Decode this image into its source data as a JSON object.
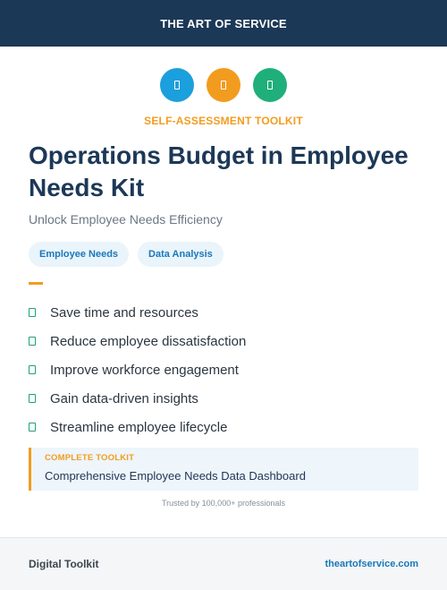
{
  "header": {
    "brand": "THE ART OF SERVICE"
  },
  "icons": [
    {
      "name": "blue-badge-icon",
      "color": "#1c9fdd"
    },
    {
      "name": "orange-badge-icon",
      "color": "#f29c1f"
    },
    {
      "name": "green-badge-icon",
      "color": "#1faf7a"
    }
  ],
  "hero": {
    "kicker": "SELF-ASSESSMENT TOOLKIT",
    "title": "Operations Budget in Employee Needs Kit",
    "subtitle": "Unlock Employee Needs Efficiency"
  },
  "tags": [
    "Employee Needs",
    "Data Analysis"
  ],
  "benefits": [
    "Save time and resources",
    "Reduce employee dissatisfaction",
    "Improve workforce engagement",
    "Gain data-driven insights",
    "Streamline employee lifecycle"
  ],
  "callout": {
    "label": "COMPLETE TOOLKIT",
    "text": "Comprehensive Employee Needs Data Dashboard"
  },
  "trusted": "Trusted by 100,000+ professionals",
  "footer": {
    "left": "Digital Toolkit",
    "right": "theartofservice.com"
  },
  "colors": {
    "header_bg": "#1c3857",
    "accent_orange": "#f29c1f",
    "accent_blue": "#1a78b8",
    "accent_green": "#1ea36f"
  }
}
